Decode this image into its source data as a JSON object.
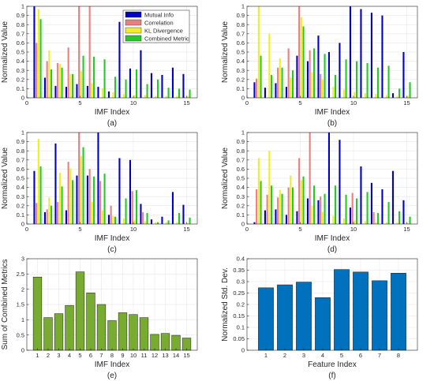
{
  "colors": {
    "mutual_info": "#0000C8",
    "correlation": "#E8807F",
    "kl_divergence": "#EEEE22",
    "combined_metric": "#22CC22",
    "sum_bar": "#77AC30",
    "std_bar": "#0072BD",
    "grid": "#e6e6e6",
    "axis": "#262626"
  },
  "chart_data": [
    {
      "type": "bar",
      "panel_label": "(a)",
      "xlabel": "IMF Index",
      "ylabel": "Normalized Value",
      "xlim": [
        0,
        16
      ],
      "ylim": [
        0,
        1
      ],
      "xticks": [
        "0",
        "5",
        "10",
        "15"
      ],
      "yticks": [
        "0",
        "0.1",
        "0.2",
        "0.3",
        "0.4",
        "0.5",
        "0.6",
        "0.7",
        "0.8",
        "0.9",
        "1"
      ],
      "grid": true,
      "legend_position": "top-right",
      "categories": [
        1,
        2,
        3,
        4,
        5,
        6,
        7,
        8,
        9,
        10,
        11,
        12,
        13,
        14,
        15
      ],
      "series": [
        {
          "name": "Mutual Info",
          "color_key": "mutual_info",
          "values": [
            1.0,
            0.22,
            0.13,
            0.12,
            0.15,
            0.13,
            0.12,
            0.07,
            0.83,
            0.32,
            0.52,
            0.27,
            0.25,
            0.33,
            0.26
          ]
        },
        {
          "name": "Correlation",
          "color_key": "correlation",
          "values": [
            0.6,
            0.4,
            0.38,
            0.55,
            1.0,
            1.0,
            0.0,
            0.0,
            0.0,
            0.0,
            0.0,
            0.0,
            0.0,
            0.0,
            0.0
          ]
        },
        {
          "name": "KL Divergence",
          "color_key": "kl_divergence",
          "values": [
            0.97,
            0.52,
            0.37,
            0.26,
            0.29,
            0.16,
            0.1,
            0.06,
            0.04,
            0.03,
            0.03,
            0.02,
            0.02,
            0.02,
            0.02
          ]
        },
        {
          "name": "Combined Metric",
          "color_key": "combined_metric",
          "values": [
            0.86,
            0.31,
            0.33,
            0.26,
            0.46,
            0.45,
            0.42,
            0.23,
            0.2,
            0.31,
            0.15,
            0.2,
            0.11,
            0.1,
            0.09
          ]
        }
      ]
    },
    {
      "type": "bar",
      "panel_label": "(b)",
      "xlabel": "IMF Index",
      "ylabel": "Normalized Value",
      "xlim": [
        0,
        16
      ],
      "ylim": [
        0,
        1
      ],
      "xticks": [
        "0",
        "5",
        "10",
        "15"
      ],
      "yticks": [
        "0",
        "0.1",
        "0.2",
        "0.3",
        "0.4",
        "0.5",
        "0.6",
        "0.7",
        "0.8",
        "0.9",
        "1"
      ],
      "grid": true,
      "categories": [
        1,
        2,
        3,
        4,
        5,
        6,
        7,
        8,
        9,
        10,
        11,
        12,
        13,
        14,
        15
      ],
      "series": [
        {
          "name": "Mutual Info",
          "color_key": "mutual_info",
          "values": [
            0.17,
            0.11,
            0.16,
            0.12,
            0.46,
            0.4,
            0.68,
            0.5,
            0.6,
            1.0,
            0.97,
            0.93,
            0.9,
            0.05,
            0.5
          ]
        },
        {
          "name": "Correlation",
          "color_key": "correlation",
          "values": [
            0.21,
            0.0,
            0.33,
            0.54,
            1.0,
            0.52,
            0.26,
            0.0,
            0.0,
            0.0,
            0.0,
            0.0,
            0.0,
            0.0,
            0.0
          ]
        },
        {
          "name": "KL Divergence",
          "color_key": "kl_divergence",
          "values": [
            1.0,
            0.7,
            0.43,
            0.22,
            0.88,
            0.28,
            0.2,
            0.12,
            0.09,
            0.06,
            0.05,
            0.04,
            0.03,
            0.02,
            0.02
          ]
        },
        {
          "name": "Combined Metric",
          "color_key": "combined_metric",
          "values": [
            0.46,
            0.25,
            0.33,
            0.3,
            0.78,
            0.54,
            0.48,
            0.25,
            0.42,
            0.4,
            0.38,
            0.33,
            0.35,
            0.1,
            0.17
          ]
        }
      ]
    },
    {
      "type": "bar",
      "panel_label": "(c)",
      "xlabel": "IMF Index",
      "ylabel": "Normalized Value",
      "xlim": [
        0,
        16
      ],
      "ylim": [
        0,
        1
      ],
      "xticks": [
        "0",
        "5",
        "10",
        "15"
      ],
      "yticks": [
        "0",
        "0.1",
        "0.2",
        "0.3",
        "0.4",
        "0.5",
        "0.6",
        "0.7",
        "0.8",
        "0.9",
        "1"
      ],
      "grid": true,
      "categories": [
        1,
        2,
        3,
        4,
        5,
        6,
        7,
        8,
        9,
        10,
        11,
        12,
        13,
        14,
        15
      ],
      "series": [
        {
          "name": "Mutual Info",
          "color_key": "mutual_info",
          "values": [
            0.58,
            0.13,
            0.88,
            0.15,
            0.53,
            0.53,
            1.0,
            0.1,
            0.72,
            0.7,
            0.22,
            0.05,
            0.08,
            0.35,
            0.21
          ]
        },
        {
          "name": "Correlation",
          "color_key": "correlation",
          "values": [
            0.23,
            0.16,
            0.24,
            0.68,
            1.0,
            0.6,
            0.47,
            0.2,
            0.0,
            0.36,
            0.13,
            0.0,
            0.0,
            0.0,
            0.0
          ]
        },
        {
          "name": "KL Divergence",
          "color_key": "kl_divergence",
          "values": [
            0.93,
            0.29,
            0.56,
            0.61,
            0.74,
            0.24,
            0.15,
            0.09,
            0.06,
            0.04,
            0.03,
            0.02,
            0.02,
            0.02,
            0.01
          ]
        },
        {
          "name": "Combined Metric",
          "color_key": "combined_metric",
          "values": [
            0.63,
            0.2,
            0.41,
            0.48,
            0.84,
            0.52,
            0.55,
            0.08,
            0.28,
            0.37,
            0.12,
            0.02,
            0.04,
            0.12,
            0.07
          ]
        }
      ]
    },
    {
      "type": "bar",
      "panel_label": "(d)",
      "xlabel": "IMF Index",
      "ylabel": "Normalized Value",
      "xlim": [
        0,
        16
      ],
      "ylim": [
        0,
        1
      ],
      "xticks": [
        "0",
        "5",
        "10",
        "15"
      ],
      "yticks": [
        "0",
        "0.1",
        "0.2",
        "0.3",
        "0.4",
        "0.5",
        "0.6",
        "0.7",
        "0.8",
        "0.9",
        "1"
      ],
      "grid": true,
      "categories": [
        1,
        2,
        3,
        4,
        5,
        6,
        7,
        8,
        9,
        10,
        11,
        12,
        13,
        14,
        15
      ],
      "series": [
        {
          "name": "Mutual Info",
          "color_key": "mutual_info",
          "values": [
            0.02,
            0.15,
            0.16,
            0.1,
            0.14,
            0.28,
            0.26,
            1.0,
            0.92,
            0.18,
            0.63,
            0.45,
            0.38,
            0.58,
            0.26
          ]
        },
        {
          "name": "Correlation",
          "color_key": "correlation",
          "values": [
            0.38,
            0.32,
            0.29,
            0.4,
            0.72,
            1.0,
            0.3,
            0.0,
            0.0,
            0.34,
            0.0,
            0.13,
            0.0,
            0.0,
            0.0
          ]
        },
        {
          "name": "KL Divergence",
          "color_key": "kl_divergence",
          "values": [
            0.72,
            0.8,
            0.37,
            0.53,
            0.48,
            0.2,
            0.13,
            0.09,
            0.06,
            0.04,
            0.03,
            0.02,
            0.02,
            0.02,
            0.01
          ]
        },
        {
          "name": "Combined Metric",
          "color_key": "combined_metric",
          "values": [
            0.47,
            0.42,
            0.33,
            0.4,
            0.52,
            0.42,
            0.33,
            0.42,
            0.32,
            0.28,
            0.35,
            0.12,
            0.24,
            0.14,
            0.08
          ]
        }
      ]
    },
    {
      "type": "bar",
      "panel_label": "(e)",
      "xlabel": "IMF Index",
      "ylabel": "Sum of Combined Metrics",
      "ylim": [
        0,
        3
      ],
      "yticks": [
        "0",
        "0.5",
        "1",
        "1.5",
        "2",
        "2.5",
        "3"
      ],
      "grid": true,
      "color_key": "sum_bar",
      "categories": [
        "1",
        "2",
        "3",
        "4",
        "5",
        "6",
        "7",
        "8",
        "9",
        "10",
        "11",
        "12",
        "13",
        "14",
        "15"
      ],
      "values": [
        2.4,
        1.07,
        1.2,
        1.47,
        2.57,
        1.88,
        1.5,
        0.97,
        1.23,
        1.17,
        1.07,
        0.52,
        0.55,
        0.49,
        0.4
      ]
    },
    {
      "type": "bar",
      "panel_label": "(f)",
      "xlabel": "Feature Index",
      "ylabel": "Normalized Std. Dev.",
      "ylim": [
        0,
        0.4
      ],
      "yticks": [
        "0",
        "0.05",
        "0.1",
        "0.15",
        "0.2",
        "0.25",
        "0.3",
        "0.35",
        "0.4"
      ],
      "grid": true,
      "color_key": "std_bar",
      "categories": [
        "1",
        "2",
        "3",
        "4",
        "5",
        "6",
        "7",
        "8"
      ],
      "values": [
        0.273,
        0.286,
        0.298,
        0.23,
        0.353,
        0.342,
        0.304,
        0.337
      ]
    }
  ]
}
